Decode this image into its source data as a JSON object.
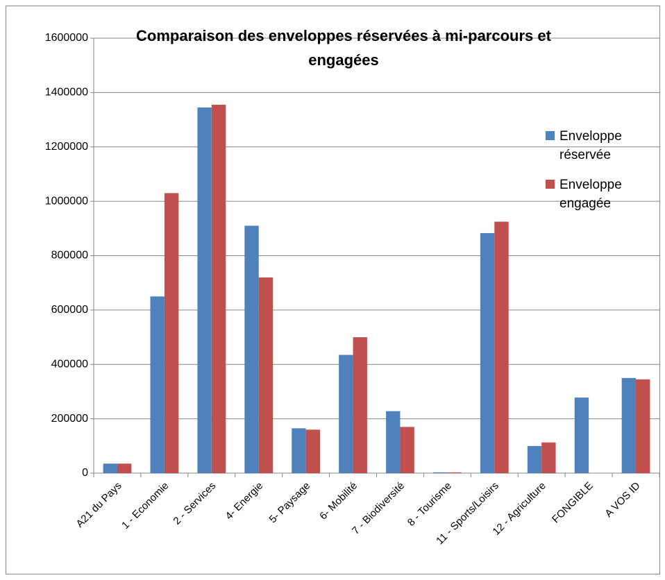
{
  "chart_data": {
    "type": "bar",
    "title": "Comparaison des enveloppes réservées à mi-parcours et engagées",
    "categories": [
      "A21 du Pays",
      "1 - Economie",
      "2 - Services",
      "4- Energie",
      "5- Paysage",
      "6- Mobilité",
      "7 - Biodiversité",
      "8 - Tourisme",
      "11 - Sports/Loisirs",
      "12 - Agriculture",
      "FONGIBLE",
      "A VOS ID"
    ],
    "series": [
      {
        "name": "Enveloppe réservée",
        "color": "#4f81bd",
        "values": [
          35000,
          650000,
          1345000,
          910000,
          165000,
          435000,
          228000,
          3000,
          883000,
          100000,
          278000,
          350000
        ]
      },
      {
        "name": "Enveloppe engagée",
        "color": "#c0504d",
        "values": [
          35000,
          1030000,
          1355000,
          720000,
          160000,
          500000,
          170000,
          3000,
          925000,
          113000,
          0,
          345000
        ]
      }
    ],
    "ylim": [
      0,
      1600000
    ],
    "yticks": [
      0,
      200000,
      400000,
      600000,
      800000,
      1000000,
      1200000,
      1400000,
      1600000
    ],
    "grid": true,
    "legend": "right"
  }
}
